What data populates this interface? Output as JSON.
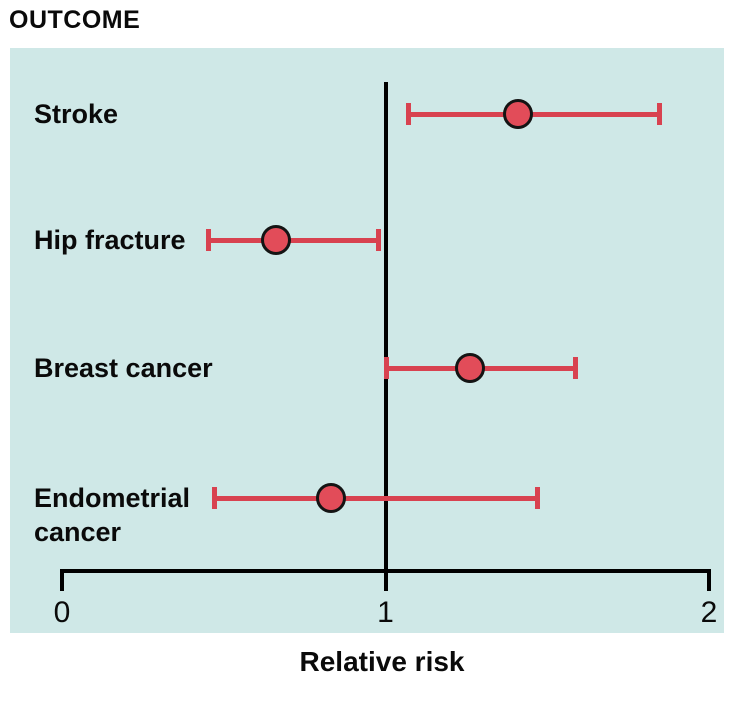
{
  "title": "OUTCOME",
  "colors": {
    "panel_bg": "#cfe8e7",
    "bar_color": "#d84250",
    "marker_fill": "#e24c59",
    "marker_outline": "#141414",
    "axis_color": "#000000",
    "text_color": "#0a0a0a"
  },
  "chart_data": {
    "type": "forest",
    "title": "OUTCOME",
    "xlabel": "Relative risk",
    "xlim": [
      0,
      2
    ],
    "x_ticks": [
      "0",
      "1",
      "2"
    ],
    "x_tick_values": [
      0,
      1,
      2
    ],
    "reference_line": 1,
    "grid": false,
    "legend": false,
    "rows": [
      {
        "label": "Stroke",
        "rr": 1.41,
        "ci_low": 1.07,
        "ci_high": 1.85
      },
      {
        "label": "Hip fracture",
        "rr": 0.66,
        "ci_low": 0.45,
        "ci_high": 0.98
      },
      {
        "label": "Breast cancer",
        "rr": 1.26,
        "ci_low": 1.0,
        "ci_high": 1.59
      },
      {
        "label": "Endometrial cancer",
        "rr": 0.83,
        "ci_low": 0.47,
        "ci_high": 1.47
      }
    ]
  }
}
